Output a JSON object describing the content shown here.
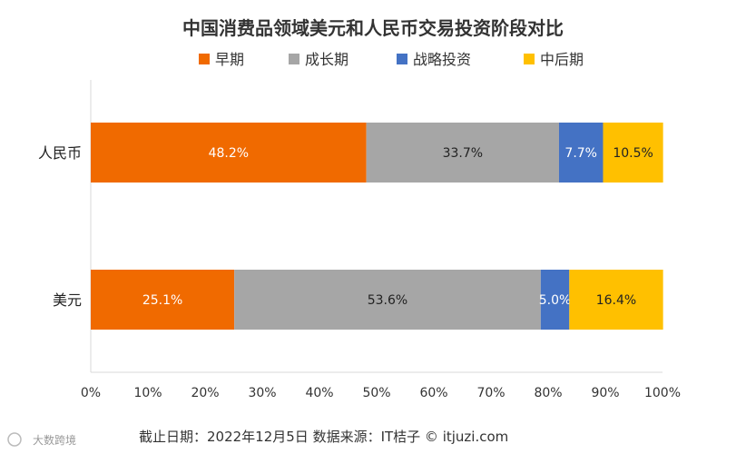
{
  "chart_data": {
    "type": "bar",
    "orientation": "horizontal",
    "stacked": true,
    "title": "中国消费品领域美元和人民币交易投资阶段对比",
    "categories": [
      "人民币",
      "美元"
    ],
    "series": [
      {
        "name": "早期",
        "color": "#f06a00",
        "label_color": "#ffffff",
        "values": [
          48.2,
          25.1
        ],
        "labels": [
          "48.2%",
          "25.1%"
        ]
      },
      {
        "name": "成长期",
        "color": "#a6a6a6",
        "label_color": "#222222",
        "values": [
          33.7,
          53.6
        ],
        "labels": [
          "33.7%",
          "53.6%"
        ]
      },
      {
        "name": "战略投资",
        "color": "#4472c4",
        "label_color": "#ffffff",
        "values": [
          7.7,
          5.0
        ],
        "labels": [
          "7.7%",
          "5.0%"
        ]
      },
      {
        "name": "中后期",
        "color": "#ffc000",
        "label_color": "#222222",
        "values": [
          10.5,
          16.4
        ],
        "labels": [
          "10.5%",
          "16.4%"
        ]
      }
    ],
    "xlim": [
      0,
      100
    ],
    "xticks": [
      "0%",
      "10%",
      "20%",
      "30%",
      "40%",
      "50%",
      "60%",
      "70%",
      "80%",
      "90%",
      "100%"
    ],
    "legend_position": "top",
    "grid": false
  },
  "footer": {
    "source_text": "截止日期：2022年12月5日    数据来源：IT桔子 © itjuzi.com"
  },
  "watermark": {
    "text": "大数跨境"
  }
}
